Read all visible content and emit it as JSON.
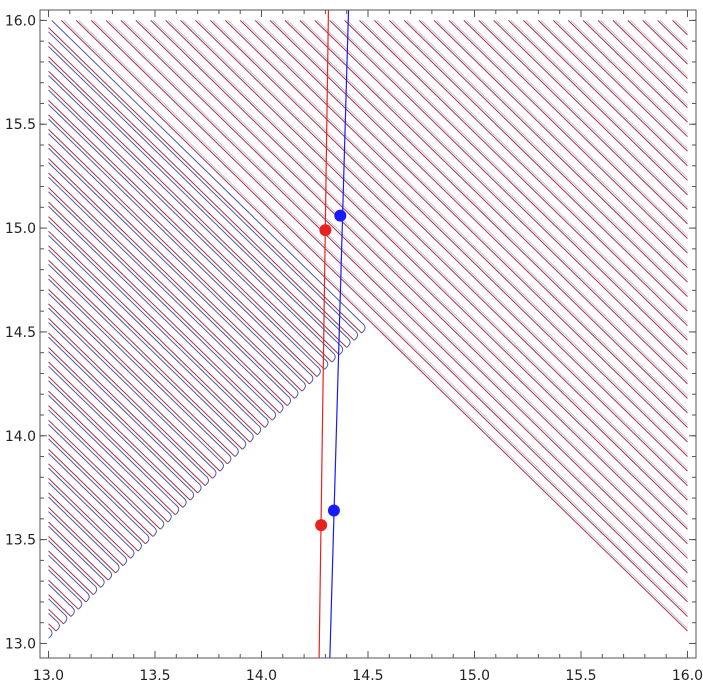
{
  "chart_data": {
    "type": "line",
    "title": "",
    "xlabel": "",
    "ylabel": "",
    "xlim": [
      12.96,
      16.04
    ],
    "ylim": [
      12.93,
      16.05
    ],
    "grid": false,
    "legend": "none",
    "x_ticks": [
      "13.0",
      "13.5",
      "14.0",
      "14.5",
      "15.0",
      "15.5",
      "16.0"
    ],
    "y_ticks": [
      "13.0",
      "13.5",
      "14.0",
      "14.5",
      "15.0",
      "15.5",
      "16.0"
    ],
    "colors": {
      "red": "#e8231f",
      "blue": "#1a1aff",
      "contour_red": "#b03048",
      "contour_blue": "#4a5aa8",
      "frame": "#555555"
    },
    "contours": {
      "domain": {
        "x": [
          13.0,
          16.0
        ],
        "y": [
          13.0,
          16.0
        ]
      },
      "spacing": 0.07,
      "fold_threshold": 29.0,
      "fold_radius": 0.025
    },
    "series": [
      {
        "color": "red",
        "points": [
          {
            "x": 14.27,
            "y": 12.9
          },
          {
            "x": 14.315,
            "y": 16.1
          }
        ]
      },
      {
        "color": "blue",
        "points": [
          {
            "x": 14.32,
            "y": 12.9
          },
          {
            "x": 14.41,
            "y": 16.1
          }
        ]
      }
    ],
    "markers": [
      {
        "color": "red",
        "x": 14.28,
        "y": 13.57
      },
      {
        "color": "red",
        "x": 14.3,
        "y": 14.99
      },
      {
        "color": "blue",
        "x": 14.34,
        "y": 13.64
      },
      {
        "color": "blue",
        "x": 14.37,
        "y": 15.06
      }
    ]
  }
}
